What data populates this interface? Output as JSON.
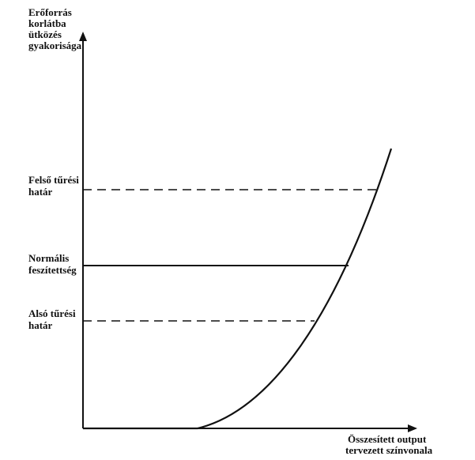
{
  "y_axis_label": [
    "Erőforrás",
    "korlátba",
    "ütközés",
    "gyakorisága"
  ],
  "levels": [
    {
      "label": [
        "Felső tűrési",
        "határ"
      ]
    },
    {
      "label": [
        "Normális",
        "feszítettség"
      ]
    },
    {
      "label": [
        "Alsó tűrési",
        "határ"
      ]
    }
  ],
  "x_axis_label": [
    "Összesített output",
    "tervezett színvonala"
  ]
}
